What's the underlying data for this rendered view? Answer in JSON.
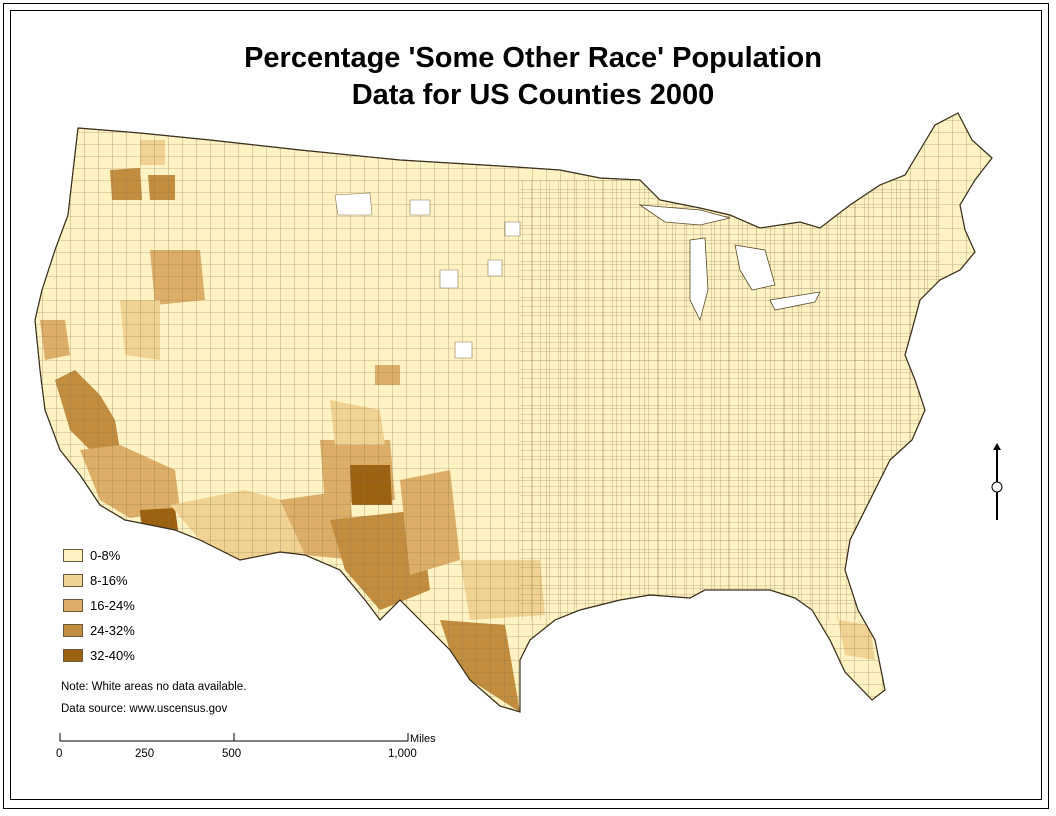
{
  "title": {
    "line1": "Percentage 'Some Other Race' Population",
    "line2": "Data for US Counties 2000"
  },
  "colors": {
    "class_0_8": "#fff3c4",
    "class_8_16": "#f0d393",
    "class_16_24": "#dcae68",
    "class_24_32": "#c28d3e",
    "class_32_40": "#9c6212",
    "county_border": "#8a7650",
    "no_data": "#ffffff"
  },
  "legend": {
    "items": [
      {
        "label": "0-8%",
        "color": "#fff3c4"
      },
      {
        "label": "8-16%",
        "color": "#f0d393"
      },
      {
        "label": "16-24%",
        "color": "#dcae68"
      },
      {
        "label": "24-32%",
        "color": "#c28d3e"
      },
      {
        "label": "32-40%",
        "color": "#9c6212"
      }
    ]
  },
  "notes": {
    "no_data": "Note: White areas no data available.",
    "source": "Data source: www.uscensus.gov"
  },
  "scale": {
    "ticks": [
      "0",
      "250",
      "500",
      "1,000"
    ],
    "units": "Miles"
  }
}
